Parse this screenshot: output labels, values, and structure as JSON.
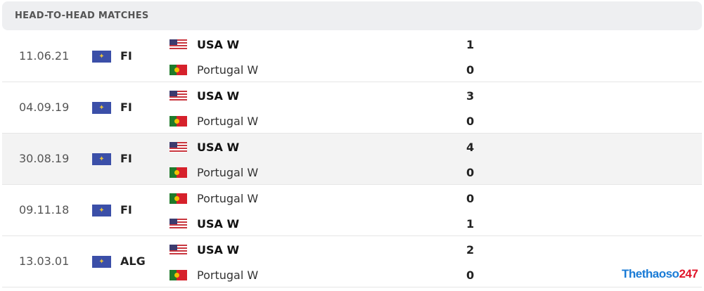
{
  "header": {
    "title": "HEAD-TO-HEAD MATCHES"
  },
  "matches": [
    {
      "date": "11.06.21",
      "competition": "FI",
      "competition_icon": "world-map-icon",
      "home": {
        "name": "USA W",
        "flag": "usa",
        "score": "1",
        "winner": true
      },
      "away": {
        "name": "Portugal W",
        "flag": "portugal",
        "score": "0",
        "winner": false
      }
    },
    {
      "date": "04.09.19",
      "competition": "FI",
      "competition_icon": "world-map-icon",
      "home": {
        "name": "USA W",
        "flag": "usa",
        "score": "3",
        "winner": true
      },
      "away": {
        "name": "Portugal W",
        "flag": "portugal",
        "score": "0",
        "winner": false
      }
    },
    {
      "date": "30.08.19",
      "competition": "FI",
      "competition_icon": "world-map-icon",
      "home": {
        "name": "USA W",
        "flag": "usa",
        "score": "4",
        "winner": true
      },
      "away": {
        "name": "Portugal W",
        "flag": "portugal",
        "score": "0",
        "winner": false
      }
    },
    {
      "date": "09.11.18",
      "competition": "FI",
      "competition_icon": "world-map-icon",
      "home": {
        "name": "Portugal W",
        "flag": "portugal",
        "score": "0",
        "winner": false
      },
      "away": {
        "name": "USA W",
        "flag": "usa",
        "score": "1",
        "winner": true
      }
    },
    {
      "date": "13.03.01",
      "competition": "ALG",
      "competition_icon": "world-map-icon",
      "home": {
        "name": "USA W",
        "flag": "usa",
        "score": "2",
        "winner": true
      },
      "away": {
        "name": "Portugal W",
        "flag": "portugal",
        "score": "0",
        "winner": false
      }
    }
  ],
  "watermark": {
    "part1": "Thethaoso",
    "part2": "247"
  }
}
